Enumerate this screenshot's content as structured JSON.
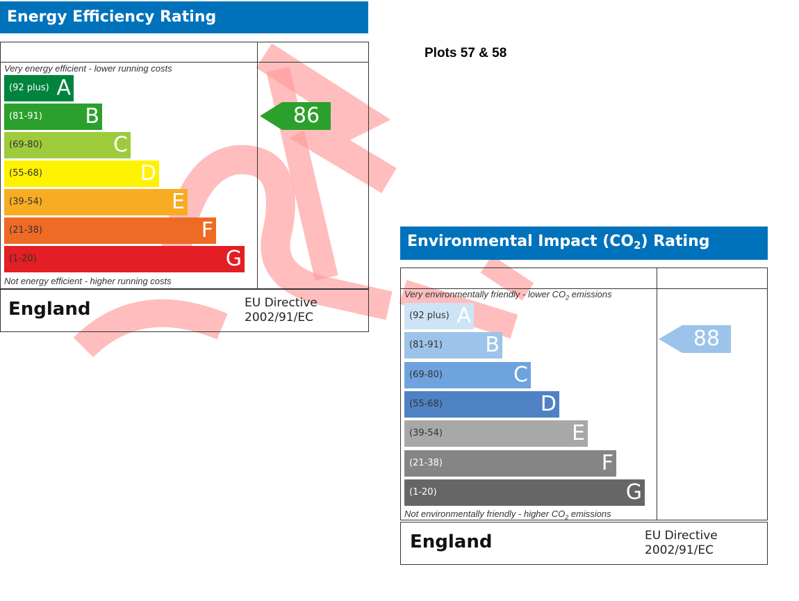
{
  "plots_label": "Plots 57 & 58",
  "energy": {
    "title": "Energy Efficiency Rating",
    "top_caption": "Very energy efficient - lower running costs",
    "bottom_caption": "Not energy efficient - higher running costs",
    "country": "England",
    "directive_line1": "EU Directive",
    "directive_line2": "2002/91/EC",
    "current_value": "86",
    "current_color": "#2ca02c",
    "bands": [
      {
        "range": "(92 plus)",
        "letter": "A",
        "color": "#00843d",
        "text_color": "#ffffff"
      },
      {
        "range": "(81-91)",
        "letter": "B",
        "color": "#2ca02c",
        "text_color": "#ffffff"
      },
      {
        "range": "(69-80)",
        "letter": "C",
        "color": "#9dcb3c",
        "text_color": "#333333"
      },
      {
        "range": "(55-68)",
        "letter": "D",
        "color": "#fff200",
        "text_color": "#333333"
      },
      {
        "range": "(39-54)",
        "letter": "E",
        "color": "#f7ac23",
        "text_color": "#333333"
      },
      {
        "range": "(21-38)",
        "letter": "F",
        "color": "#ee6b25",
        "text_color": "#333333"
      },
      {
        "range": "(1-20)",
        "letter": "G",
        "color": "#e31e24",
        "text_color": "#333333"
      }
    ]
  },
  "environmental": {
    "title_prefix": "Environmental Impact (CO",
    "title_sub": "2",
    "title_suffix": ") Rating",
    "top_caption_prefix": "Very environmentally friendly - lower CO",
    "top_caption_sub": "2",
    "top_caption_suffix": " emissions",
    "bottom_caption_prefix": "Not environmentally friendly - higher CO",
    "bottom_caption_sub": "2",
    "bottom_caption_suffix": " emissions",
    "country": "England",
    "directive_line1": "EU Directive",
    "directive_line2": "2002/91/EC",
    "current_value": "88",
    "current_color": "#9cc3ea",
    "bands": [
      {
        "range": "(92 plus)",
        "letter": "A",
        "color": "#cde3f6",
        "text_color": "#333333"
      },
      {
        "range": "(81-91)",
        "letter": "B",
        "color": "#9cc3ea",
        "text_color": "#333333"
      },
      {
        "range": "(69-80)",
        "letter": "C",
        "color": "#6fa3dd",
        "text_color": "#333333"
      },
      {
        "range": "(55-68)",
        "letter": "D",
        "color": "#4f82c4",
        "text_color": "#333333"
      },
      {
        "range": "(39-54)",
        "letter": "E",
        "color": "#a8a8a8",
        "text_color": "#333333"
      },
      {
        "range": "(21-38)",
        "letter": "F",
        "color": "#858585",
        "text_color": "#ffffff"
      },
      {
        "range": "(1-20)",
        "letter": "G",
        "color": "#666666",
        "text_color": "#ffffff"
      }
    ]
  },
  "chart_data": [
    {
      "type": "bar",
      "title": "Energy Efficiency Rating",
      "categories": [
        "A",
        "B",
        "C",
        "D",
        "E",
        "F",
        "G"
      ],
      "ranges": [
        "(92 plus)",
        "(81-91)",
        "(69-80)",
        "(55-68)",
        "(39-54)",
        "(21-38)",
        "(1-20)"
      ],
      "current_rating": 86
    },
    {
      "type": "bar",
      "title": "Environmental Impact (CO2) Rating",
      "categories": [
        "A",
        "B",
        "C",
        "D",
        "E",
        "F",
        "G"
      ],
      "ranges": [
        "(92 plus)",
        "(81-91)",
        "(69-80)",
        "(55-68)",
        "(39-54)",
        "(21-38)",
        "(1-20)"
      ],
      "current_rating": 88
    }
  ]
}
